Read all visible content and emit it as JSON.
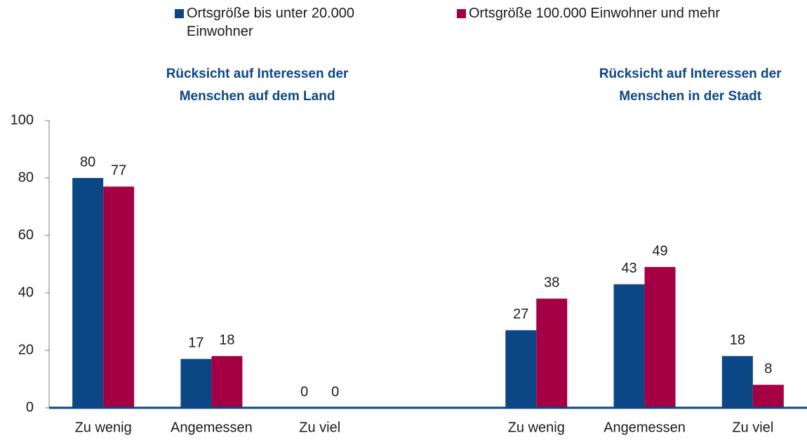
{
  "chart_data": {
    "type": "bar",
    "panel_titles": [
      [
        "Rücksicht auf Interessen der",
        "Menschen auf dem Land"
      ],
      [
        "Rücksicht auf Interessen der",
        "Menschen in der Stadt"
      ]
    ],
    "categories": [
      "Zu wenig",
      "Angemessen",
      "Zu viel",
      null,
      "Zu wenig",
      "Angemessen",
      "Zu viel"
    ],
    "series": [
      {
        "name": "Ortsgröße bis unter 20.000 Einwohner",
        "color": "#0b4785",
        "values": [
          80,
          17,
          0,
          null,
          27,
          43,
          18
        ]
      },
      {
        "name": "Ortsgröße 100.000 Einwohner und mehr",
        "color": "#a50044",
        "values": [
          77,
          18,
          0,
          null,
          38,
          49,
          8
        ]
      }
    ],
    "ylim": [
      0,
      100
    ],
    "yticks": [
      0,
      20,
      40,
      60,
      80,
      100
    ],
    "grid": false
  }
}
